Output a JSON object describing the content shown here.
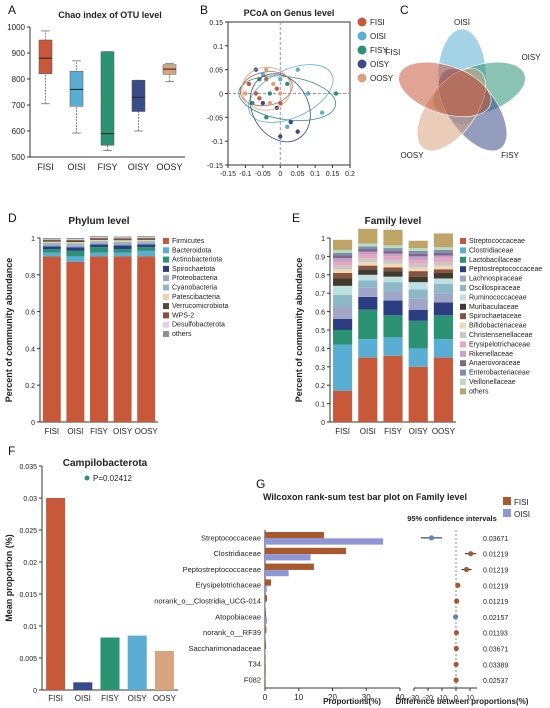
{
  "colors": {
    "FISI": "#c8583a",
    "OISI": "#5aaed3",
    "FISY": "#2b9274",
    "OISY": "#3a4c87",
    "OOSY": "#d8a37f",
    "axis": "#333333",
    "ellipse_guides": "#888888"
  },
  "chart_data": [
    {
      "panel": "A",
      "type": "box",
      "title": "Chao index of OTU level",
      "categories": [
        "FISI",
        "OISI",
        "FISY",
        "OISY",
        "OOSY"
      ],
      "ylim": [
        500,
        1000
      ],
      "yticks": [
        500,
        600,
        700,
        800,
        900,
        1000
      ],
      "boxes": [
        {
          "name": "FISI",
          "min": 705,
          "q1": 820,
          "median": 880,
          "q3": 950,
          "max": 985
        },
        {
          "name": "OISI",
          "min": 592,
          "q1": 695,
          "median": 760,
          "q3": 830,
          "max": 870
        },
        {
          "name": "FISY",
          "min": 525,
          "q1": 545,
          "median": 590,
          "q3": 905,
          "max": 905
        },
        {
          "name": "OISY",
          "min": 600,
          "q1": 675,
          "median": 730,
          "q3": 795,
          "max": 795
        },
        {
          "name": "OOSY",
          "min": 790,
          "q1": 818,
          "median": 838,
          "q3": 855,
          "max": 860
        }
      ]
    },
    {
      "panel": "B",
      "type": "scatter",
      "title": "PCoA on Genus level",
      "xlim": [
        -0.15,
        0.2
      ],
      "ylim": [
        -0.15,
        0.15
      ],
      "xticks": [
        -0.15,
        -0.1,
        -0.05,
        0,
        0.05,
        0.1,
        0.15,
        0.2
      ],
      "yticks": [
        -0.15,
        -0.1,
        -0.05,
        0,
        0.05,
        0.1,
        0.15
      ],
      "xtick_labels": [
        "-0.15",
        "-0.1",
        "-0.05",
        "0",
        "0.05",
        "0.1",
        "0.15",
        "0.2"
      ],
      "ytick_labels": [
        "-0.15",
        "-0.1",
        "-0.05",
        "0",
        "0.05",
        "0.1",
        "0.15"
      ],
      "legend_position": "right",
      "series": [
        {
          "name": "FISI",
          "points": [
            [
              -0.09,
              0.02
            ],
            [
              -0.07,
              0.0
            ],
            [
              -0.04,
              0.03
            ],
            [
              -0.01,
              0.01
            ],
            [
              -0.06,
              -0.01
            ],
            [
              0.0,
              -0.02
            ]
          ],
          "ellipse": {
            "cx": -0.04,
            "cy": 0.01,
            "rx": 0.075,
            "ry": 0.035,
            "angle": -10
          }
        },
        {
          "name": "OISI",
          "points": [
            [
              -0.05,
              0.04
            ],
            [
              0.0,
              0.03
            ],
            [
              0.05,
              0.05
            ],
            [
              0.08,
              0.0
            ],
            [
              0.12,
              -0.04
            ],
            [
              0.02,
              -0.07
            ]
          ],
          "ellipse": {
            "cx": 0.03,
            "cy": 0.0,
            "rx": 0.13,
            "ry": 0.05,
            "angle": -25
          }
        },
        {
          "name": "FISY",
          "points": [
            [
              -0.06,
              0.03
            ],
            [
              -0.03,
              0.0
            ],
            [
              0.02,
              0.02
            ],
            [
              0.16,
              0.0
            ],
            [
              -0.08,
              -0.02
            ],
            [
              -0.04,
              -0.05
            ]
          ],
          "ellipse": {
            "cx": 0.02,
            "cy": -0.01,
            "rx": 0.14,
            "ry": 0.045,
            "angle": 8
          }
        },
        {
          "name": "OISY",
          "points": [
            [
              -0.07,
              0.05
            ],
            [
              -0.05,
              -0.02
            ],
            [
              -0.01,
              -0.03
            ],
            [
              0.0,
              -0.09
            ],
            [
              0.05,
              -0.08
            ],
            [
              0.03,
              -0.06
            ]
          ],
          "ellipse": {
            "cx": 0.0,
            "cy": -0.03,
            "rx": 0.08,
            "ry": 0.075,
            "angle": -30
          }
        },
        {
          "name": "OOSY",
          "points": [
            [
              -0.1,
              0.0
            ],
            [
              -0.04,
              0.05
            ],
            [
              -0.02,
              0.02
            ],
            [
              -0.03,
              -0.02
            ],
            [
              0.0,
              0.0
            ]
          ],
          "ellipse": {
            "cx": -0.04,
            "cy": 0.01,
            "rx": 0.07,
            "ry": 0.045,
            "angle": -5
          }
        }
      ]
    },
    {
      "panel": "C",
      "type": "venn",
      "sets": [
        "OISI",
        "OISY",
        "FISY",
        "OOSY",
        "FISI"
      ],
      "colors": [
        "#5aaed3",
        "#2b9274",
        "#3a4c87",
        "#d8a37f",
        "#c8583a"
      ]
    },
    {
      "panel": "D",
      "type": "stacked-bar",
      "title": "Phylum level",
      "ylabel": "Percent of community abundance",
      "categories": [
        "FISI",
        "OISI",
        "FISY",
        "OISY",
        "OOSY"
      ],
      "ylim": [
        0,
        1
      ],
      "yticks": [
        0,
        0.2,
        0.4,
        0.6,
        0.8,
        1
      ],
      "series": [
        {
          "name": "Firmicutes",
          "color": "#c8583a",
          "values": [
            0.9,
            0.87,
            0.9,
            0.9,
            0.9
          ]
        },
        {
          "name": "Bacteroidota",
          "color": "#5aaed3",
          "values": [
            0.02,
            0.03,
            0.02,
            0.02,
            0.03
          ]
        },
        {
          "name": "Actinobacteriota",
          "color": "#2b9274",
          "values": [
            0.02,
            0.03,
            0.03,
            0.02,
            0.02
          ]
        },
        {
          "name": "Spirochaetota",
          "color": "#2c3e82",
          "values": [
            0.015,
            0.02,
            0.015,
            0.02,
            0.015
          ]
        },
        {
          "name": "Proteobacteria",
          "color": "#a0a6c8",
          "values": [
            0.01,
            0.01,
            0.01,
            0.01,
            0.01
          ]
        },
        {
          "name": "Cyanobacteria",
          "color": "#8cb8c7",
          "values": [
            0.008,
            0.01,
            0.008,
            0.01,
            0.008
          ]
        },
        {
          "name": "Patescibacteria",
          "color": "#e6d6a3",
          "values": [
            0.007,
            0.008,
            0.007,
            0.008,
            0.007
          ]
        },
        {
          "name": "Verrucomicrobiota",
          "color": "#4f4a3a",
          "values": [
            0.006,
            0.007,
            0.006,
            0.006,
            0.006
          ]
        },
        {
          "name": "WPS-2",
          "color": "#86533e",
          "values": [
            0.005,
            0.005,
            0.005,
            0.005,
            0.005
          ]
        },
        {
          "name": "Desulfobacterota",
          "color": "#e8cde6",
          "values": [
            0.004,
            0.004,
            0.004,
            0.004,
            0.004
          ]
        },
        {
          "name": "others",
          "color": "#8f8f8f",
          "values": [
            0.005,
            0.006,
            0.005,
            0.005,
            0.005
          ]
        }
      ]
    },
    {
      "panel": "E",
      "type": "stacked-bar",
      "title": "Family level",
      "ylabel": "Percent of community abundance",
      "categories": [
        "FISI",
        "OISI",
        "FISY",
        "OISY",
        "OOSY"
      ],
      "ylim": [
        0,
        1
      ],
      "yticks": [
        0,
        0.1,
        0.2,
        0.3,
        0.4,
        0.5,
        0.6,
        0.7,
        0.8,
        0.9,
        1
      ],
      "series": [
        {
          "name": "Streptococcaceae",
          "color": "#c8583a",
          "values": [
            0.17,
            0.35,
            0.36,
            0.3,
            0.35
          ]
        },
        {
          "name": "Clostridiaceae",
          "color": "#5aaed3",
          "values": [
            0.25,
            0.1,
            0.1,
            0.1,
            0.1
          ]
        },
        {
          "name": "Lactobacillaceae",
          "color": "#2b9274",
          "values": [
            0.08,
            0.16,
            0.12,
            0.15,
            0.13
          ]
        },
        {
          "name": "Peptostreptococcaceae",
          "color": "#2c3e82",
          "values": [
            0.06,
            0.07,
            0.08,
            0.06,
            0.07
          ]
        },
        {
          "name": "Lachnospiraceae",
          "color": "#a0a6c8",
          "values": [
            0.07,
            0.05,
            0.05,
            0.06,
            0.05
          ]
        },
        {
          "name": "Oscillospiraceae",
          "color": "#8cb8c7",
          "values": [
            0.06,
            0.04,
            0.05,
            0.05,
            0.05
          ]
        },
        {
          "name": "Ruminococcaceae",
          "color": "#bfe0e0",
          "values": [
            0.05,
            0.03,
            0.03,
            0.04,
            0.03
          ]
        },
        {
          "name": "Muribaculaceae",
          "color": "#3f3a2e",
          "values": [
            0.04,
            0.03,
            0.03,
            0.03,
            0.03
          ]
        },
        {
          "name": "Spirochaetaceae",
          "color": "#86533e",
          "values": [
            0.03,
            0.02,
            0.02,
            0.03,
            0.02
          ]
        },
        {
          "name": "Bifidobacteriaceae",
          "color": "#f0d7b5",
          "values": [
            0.02,
            0.02,
            0.02,
            0.02,
            0.02
          ]
        },
        {
          "name": "Christensenellaceae",
          "color": "#c8c8c8",
          "values": [
            0.02,
            0.02,
            0.02,
            0.02,
            0.02
          ]
        },
        {
          "name": "Erysipelotrichaceae",
          "color": "#e8a6c0",
          "values": [
            0.02,
            0.02,
            0.02,
            0.02,
            0.02
          ]
        },
        {
          "name": "Rikenellaceae",
          "color": "#c9a0cc",
          "values": [
            0.02,
            0.015,
            0.015,
            0.02,
            0.015
          ]
        },
        {
          "name": "Anaerovoraceae",
          "color": "#7e6a86",
          "values": [
            0.015,
            0.015,
            0.015,
            0.015,
            0.015
          ]
        },
        {
          "name": "Enterobacteriaceae",
          "color": "#7d8fb0",
          "values": [
            0.015,
            0.015,
            0.015,
            0.015,
            0.015
          ]
        },
        {
          "name": "Veillonellaceae",
          "color": "#b9dcbb",
          "values": [
            0.015,
            0.015,
            0.015,
            0.015,
            0.015
          ]
        },
        {
          "name": "others",
          "color": "#bfa468",
          "values": [
            0.055,
            0.08,
            0.085,
            0.04,
            0.075
          ]
        }
      ]
    },
    {
      "panel": "F",
      "type": "bar",
      "title": "Campilobacterota",
      "ylabel": "Mean proportion (%)",
      "categories": [
        "FISI",
        "OISI",
        "FISY",
        "OISY",
        "OOSY"
      ],
      "values": [
        0.03,
        0.0012,
        0.0082,
        0.0085,
        0.0061
      ],
      "bar_colors": [
        "#c8583a",
        "#3a4c87",
        "#2b9274",
        "#5aaed3",
        "#d8a37f"
      ],
      "ylim": [
        0,
        0.035
      ],
      "yticks": [
        0,
        0.005,
        0.01,
        0.015,
        0.02,
        0.025,
        0.03,
        0.035
      ],
      "ytick_labels": [
        "0",
        "0.005",
        "0.01",
        "0.015",
        "0.02",
        "0.025",
        "0.03",
        "0.035"
      ],
      "annotation": "P=0.02412"
    },
    {
      "panel": "G",
      "type": "bar",
      "orientation": "horizontal",
      "title": "Wilcoxon rank-sum test bar plot on Family level",
      "xlabel": "Proportions(%)",
      "xlim": [
        0,
        40
      ],
      "xticks": [
        0,
        10,
        20,
        30,
        40
      ],
      "legend": [
        "FISI",
        "OISI"
      ],
      "categories": [
        "Streptococcaceae",
        "Clostridiaceae",
        "Peptostreptococcaceae",
        "Erysipelotrichaceae",
        "norank_o__Clostridia_UCG-014",
        "Atopobiaceae",
        "norank_o__RF39",
        "Saccharimonadaceae",
        "T34",
        "F082"
      ],
      "series": [
        {
          "name": "FISI",
          "color": "#a8582d",
          "values": [
            17.5,
            24.0,
            14.5,
            1.8,
            0.6,
            0.3,
            0.4,
            0.3,
            0.1,
            0.1
          ]
        },
        {
          "name": "OISI",
          "color": "#8f96d6",
          "values": [
            35.0,
            13.5,
            7.0,
            0.5,
            0.1,
            0.6,
            0.1,
            0.1,
            0.0,
            0.0
          ]
        }
      ],
      "ci_title": "95% confidence intervals",
      "ci_xlabel": "Difference between proportions(%)",
      "ci_xlim": [
        -30,
        15
      ],
      "ci_xticks": [
        -30,
        -20,
        -10,
        0,
        10
      ],
      "ci": [
        {
          "diff": -17.5,
          "low": -25.0,
          "high": -10.0,
          "p": "0.03671"
        },
        {
          "diff": 10.5,
          "low": 6.5,
          "high": 14.5,
          "p": "0.01219"
        },
        {
          "diff": 7.5,
          "low": 4.0,
          "high": 11.0,
          "p": "0.01219"
        },
        {
          "diff": 1.3,
          "low": 0.5,
          "high": 2.1,
          "p": "0.01219"
        },
        {
          "diff": 0.5,
          "low": 0.2,
          "high": 0.8,
          "p": "0.01219"
        },
        {
          "diff": -0.3,
          "low": -0.6,
          "high": 0.0,
          "p": "0.02157"
        },
        {
          "diff": 0.3,
          "low": 0.1,
          "high": 0.5,
          "p": "0.01193"
        },
        {
          "diff": 0.2,
          "low": 0.05,
          "high": 0.35,
          "p": "0.03671"
        },
        {
          "diff": 0.1,
          "low": 0.02,
          "high": 0.2,
          "p": "0.03389"
        },
        {
          "diff": 0.1,
          "low": 0.02,
          "high": 0.2,
          "p": "0.02537"
        }
      ]
    }
  ]
}
